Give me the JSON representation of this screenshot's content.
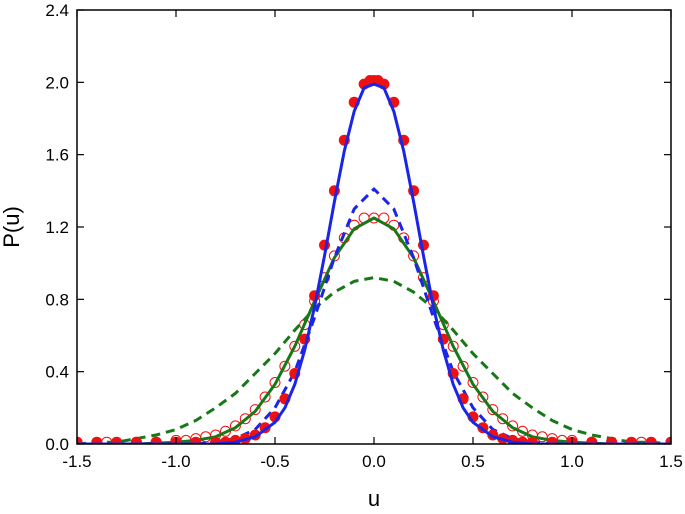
{
  "chart_data": {
    "type": "line",
    "xlabel": "u",
    "ylabel": "P(u)",
    "xlim": [
      -1.5,
      1.5
    ],
    "ylim": [
      0.0,
      2.4
    ],
    "xticks": [
      -1.5,
      -1.0,
      -0.5,
      0.0,
      0.5,
      1.0,
      1.5
    ],
    "xtick_labels": [
      "-1.5",
      "-1.0",
      "-0.5",
      "0.0",
      "0.5",
      "1.0",
      "1.5"
    ],
    "yticks": [
      0.0,
      0.4,
      0.8,
      1.2,
      1.6,
      2.0,
      2.4
    ],
    "ytick_labels": [
      "0.0",
      "0.4",
      "0.8",
      "1.2",
      "1.6",
      "2.0",
      "2.4"
    ],
    "grid": false,
    "legend": "none",
    "series": [
      {
        "style": "filled-circles",
        "color": "#ee1111",
        "x": [
          -1.5,
          -1.4,
          -1.3,
          -1.2,
          -1.1,
          -1.0,
          -0.9,
          -0.8,
          -0.75,
          -0.7,
          -0.65,
          -0.6,
          -0.55,
          -0.5,
          -0.45,
          -0.4,
          -0.35,
          -0.3,
          -0.25,
          -0.2,
          -0.15,
          -0.1,
          -0.05,
          -0.02,
          0.0,
          0.02,
          0.05,
          0.1,
          0.15,
          0.2,
          0.25,
          0.3,
          0.35,
          0.4,
          0.45,
          0.5,
          0.55,
          0.6,
          0.65,
          0.7,
          0.75,
          0.8,
          0.9,
          1.0,
          1.1,
          1.2,
          1.3,
          1.4,
          1.5
        ],
        "y": [
          0.01,
          0.01,
          0.01,
          0.01,
          0.01,
          0.01,
          0.01,
          0.01,
          0.01,
          0.02,
          0.03,
          0.05,
          0.09,
          0.15,
          0.25,
          0.39,
          0.58,
          0.82,
          1.1,
          1.4,
          1.68,
          1.89,
          1.99,
          2.01,
          2.01,
          2.01,
          1.99,
          1.89,
          1.68,
          1.4,
          1.1,
          0.82,
          0.58,
          0.39,
          0.25,
          0.15,
          0.09,
          0.05,
          0.03,
          0.02,
          0.01,
          0.01,
          0.01,
          0.01,
          0.01,
          0.01,
          0.01,
          0.01,
          0.01
        ]
      },
      {
        "style": "open-circles",
        "color": "#ee1111",
        "x": [
          -1.5,
          -1.35,
          -1.2,
          -1.1,
          -1.0,
          -0.95,
          -0.9,
          -0.85,
          -0.8,
          -0.75,
          -0.7,
          -0.65,
          -0.6,
          -0.55,
          -0.5,
          -0.45,
          -0.4,
          -0.35,
          -0.3,
          -0.25,
          -0.2,
          -0.15,
          -0.1,
          -0.05,
          0.0,
          0.05,
          0.1,
          0.15,
          0.2,
          0.25,
          0.3,
          0.35,
          0.4,
          0.45,
          0.5,
          0.55,
          0.6,
          0.65,
          0.7,
          0.75,
          0.8,
          0.85,
          0.9,
          0.95,
          1.0,
          1.1,
          1.2,
          1.35,
          1.5
        ],
        "y": [
          0.01,
          0.01,
          0.01,
          0.01,
          0.02,
          0.02,
          0.03,
          0.04,
          0.05,
          0.07,
          0.1,
          0.14,
          0.19,
          0.26,
          0.34,
          0.43,
          0.54,
          0.66,
          0.79,
          0.92,
          1.04,
          1.14,
          1.21,
          1.25,
          1.25,
          1.25,
          1.21,
          1.14,
          1.04,
          0.92,
          0.79,
          0.66,
          0.54,
          0.43,
          0.34,
          0.26,
          0.19,
          0.14,
          0.1,
          0.07,
          0.05,
          0.04,
          0.03,
          0.02,
          0.02,
          0.01,
          0.01,
          0.01,
          0.01
        ]
      },
      {
        "style": "solid-line",
        "color": "#1a25e8",
        "x": [
          -1.5,
          -1.2,
          -1.0,
          -0.9,
          -0.8,
          -0.7,
          -0.6,
          -0.5,
          -0.45,
          -0.4,
          -0.35,
          -0.3,
          -0.25,
          -0.2,
          -0.15,
          -0.1,
          -0.05,
          0.0,
          0.05,
          0.1,
          0.15,
          0.2,
          0.25,
          0.3,
          0.35,
          0.4,
          0.45,
          0.5,
          0.6,
          0.7,
          0.8,
          0.9,
          1.0,
          1.2,
          1.5
        ],
        "y": [
          0.0,
          0.0,
          0.0,
          0.0,
          0.0,
          0.01,
          0.04,
          0.12,
          0.2,
          0.33,
          0.52,
          0.76,
          1.04,
          1.34,
          1.62,
          1.84,
          1.97,
          1.99,
          1.97,
          1.84,
          1.62,
          1.34,
          1.04,
          0.76,
          0.52,
          0.33,
          0.2,
          0.12,
          0.04,
          0.01,
          0.0,
          0.0,
          0.0,
          0.0,
          0.0
        ]
      },
      {
        "style": "dashed-line",
        "color": "#1a25e8",
        "x": [
          -1.5,
          -1.2,
          -1.0,
          -0.9,
          -0.8,
          -0.7,
          -0.6,
          -0.5,
          -0.4,
          -0.3,
          -0.2,
          -0.1,
          0.0,
          0.1,
          0.2,
          0.3,
          0.4,
          0.5,
          0.6,
          0.7,
          0.8,
          0.9,
          1.0,
          1.2,
          1.5
        ],
        "y": [
          0.0,
          0.0,
          0.0,
          0.0,
          0.01,
          0.03,
          0.08,
          0.2,
          0.4,
          0.7,
          1.03,
          1.3,
          1.41,
          1.3,
          1.03,
          0.7,
          0.4,
          0.2,
          0.08,
          0.03,
          0.01,
          0.0,
          0.0,
          0.0,
          0.0
        ]
      },
      {
        "style": "solid-line",
        "color": "#187818",
        "x": [
          -1.5,
          -1.2,
          -1.0,
          -0.9,
          -0.8,
          -0.7,
          -0.6,
          -0.5,
          -0.4,
          -0.3,
          -0.2,
          -0.1,
          0.0,
          0.1,
          0.2,
          0.3,
          0.4,
          0.5,
          0.6,
          0.7,
          0.8,
          0.9,
          1.0,
          1.2,
          1.5
        ],
        "y": [
          0.0,
          0.0,
          0.01,
          0.02,
          0.04,
          0.09,
          0.18,
          0.33,
          0.54,
          0.79,
          1.03,
          1.19,
          1.25,
          1.19,
          1.03,
          0.79,
          0.54,
          0.33,
          0.18,
          0.09,
          0.04,
          0.02,
          0.01,
          0.0,
          0.0
        ]
      },
      {
        "style": "dashed-line",
        "color": "#187818",
        "x": [
          -1.5,
          -1.4,
          -1.3,
          -1.2,
          -1.1,
          -1.0,
          -0.9,
          -0.8,
          -0.7,
          -0.6,
          -0.5,
          -0.4,
          -0.3,
          -0.2,
          -0.1,
          0.0,
          0.1,
          0.2,
          0.3,
          0.4,
          0.5,
          0.6,
          0.7,
          0.8,
          0.9,
          1.0,
          1.1,
          1.2,
          1.3,
          1.4,
          1.5
        ],
        "y": [
          0.0,
          0.01,
          0.01,
          0.03,
          0.05,
          0.08,
          0.13,
          0.2,
          0.28,
          0.39,
          0.5,
          0.63,
          0.75,
          0.84,
          0.9,
          0.92,
          0.9,
          0.84,
          0.75,
          0.63,
          0.5,
          0.39,
          0.28,
          0.2,
          0.13,
          0.08,
          0.05,
          0.03,
          0.01,
          0.01,
          0.0
        ]
      }
    ]
  }
}
